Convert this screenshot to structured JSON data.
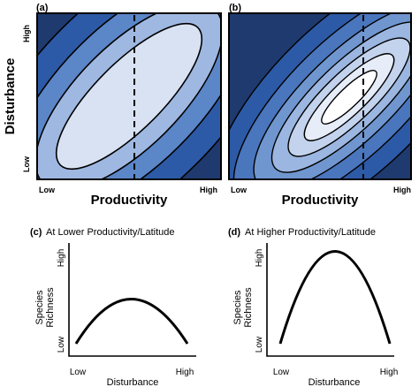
{
  "panels": {
    "a": {
      "label": "(a)",
      "y_high": "High",
      "y_low": "Low",
      "x_low": "Low",
      "x_high": "High",
      "x_title": "Productivity",
      "y_title": "Disturbance"
    },
    "b": {
      "label": "(b)",
      "x_low": "Low",
      "x_high": "High",
      "x_title": "Productivity"
    },
    "c": {
      "label": "(c)",
      "title": "At Lower Productivity/Latitude",
      "y_title_line1": "Species",
      "y_title_line2": "Richness",
      "y_high": "High",
      "y_low": "Low",
      "x_low": "Low",
      "x_high": "High",
      "x_title": "Disturbance"
    },
    "d": {
      "label": "(d)",
      "title": "At Higher Productivity/Latitude",
      "y_title_line1": "Species",
      "y_title_line2": "Richness",
      "y_high": "High",
      "y_low": "Low",
      "x_low": "Low",
      "x_high": "High",
      "x_title": "Disturbance"
    }
  },
  "colors": {
    "contour_levels_a": [
      "#1f3a6e",
      "#2d5aa6",
      "#5b86c8",
      "#9fb8e2",
      "#d8e2f3"
    ],
    "contour_levels_b": [
      "#1f3a6e",
      "#2d5aa6",
      "#4a76bd",
      "#7096d0",
      "#9bb6e0",
      "#c3d3ee",
      "#e6edf8",
      "#ffffff"
    ],
    "line": "#000000"
  }
}
